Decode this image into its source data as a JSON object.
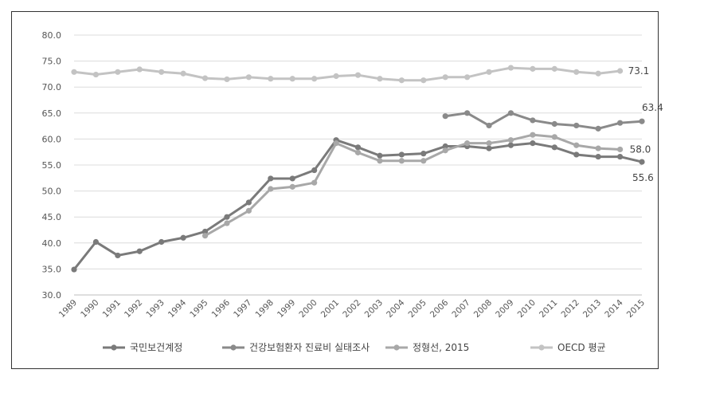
{
  "chart_data": {
    "type": "line",
    "title": "",
    "xlabel": "",
    "ylabel": "",
    "ylim": [
      30.0,
      80.0
    ],
    "yticks": [
      "80.0",
      "75.0",
      "70.0",
      "65.0",
      "60.0",
      "55.0",
      "50.0",
      "45.0",
      "40.0",
      "35.0",
      "30.0"
    ],
    "grid": true,
    "legend_position": "bottom",
    "categories": [
      "1989",
      "1990",
      "1991",
      "1992",
      "1993",
      "1994",
      "1995",
      "1996",
      "1997",
      "1998",
      "1999",
      "2000",
      "2001",
      "2002",
      "2003",
      "2004",
      "2005",
      "2006",
      "2007",
      "2008",
      "2009",
      "2010",
      "2011",
      "2012",
      "2013",
      "2014",
      "2015"
    ],
    "series": [
      {
        "name": "국민보건계정",
        "color": "#7a7a7a",
        "values": [
          34.9,
          40.2,
          37.6,
          38.4,
          40.2,
          41.0,
          42.2,
          45.0,
          47.8,
          52.4,
          52.4,
          54.0,
          59.8,
          58.4,
          56.8,
          57.0,
          57.2,
          58.6,
          58.6,
          58.2,
          58.8,
          59.2,
          58.4,
          57.0,
          56.6,
          56.6,
          55.6
        ],
        "labels": {
          "2015": "55.6"
        }
      },
      {
        "name": "건강보험환자 진료비 실태조사",
        "color": "#8a8a8a",
        "values": [
          null,
          null,
          null,
          null,
          null,
          null,
          null,
          null,
          null,
          null,
          null,
          null,
          null,
          null,
          null,
          null,
          null,
          64.4,
          65.0,
          62.6,
          65.0,
          63.6,
          62.9,
          62.6,
          62.0,
          63.1,
          63.4
        ],
        "labels": {
          "2015": "63.4"
        }
      },
      {
        "name": "정형선, 2015",
        "color": "#a8a8a8",
        "values": [
          null,
          null,
          null,
          null,
          null,
          null,
          41.4,
          43.8,
          46.2,
          50.4,
          50.8,
          51.6,
          59.2,
          57.4,
          55.8,
          55.8,
          55.8,
          57.8,
          59.2,
          59.2,
          59.8,
          60.8,
          60.4,
          58.8,
          58.2,
          58.0,
          null
        ],
        "labels": {
          "2014": "58.0"
        }
      },
      {
        "name": "OECD 평균",
        "color": "#c3c3c3",
        "values": [
          72.9,
          72.4,
          72.9,
          73.4,
          72.9,
          72.6,
          71.7,
          71.5,
          71.9,
          71.6,
          71.6,
          71.6,
          72.1,
          72.3,
          71.6,
          71.3,
          71.3,
          71.9,
          71.9,
          72.9,
          73.7,
          73.5,
          73.5,
          72.9,
          72.6,
          73.1,
          null
        ],
        "labels": {
          "2014": "73.1"
        }
      }
    ]
  }
}
